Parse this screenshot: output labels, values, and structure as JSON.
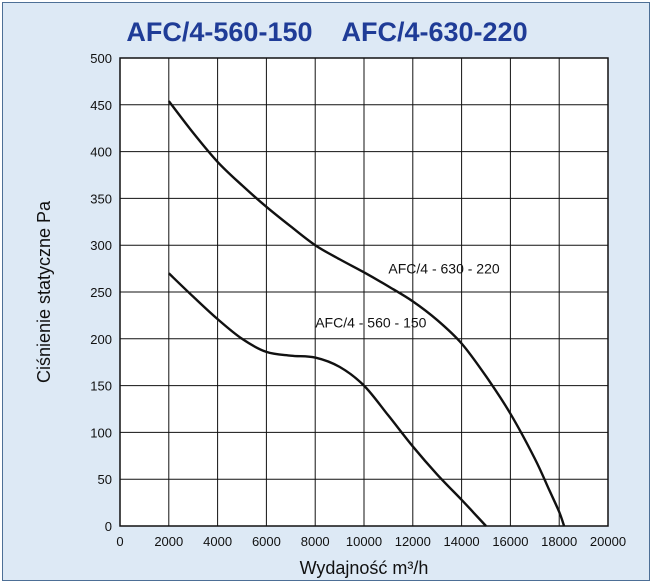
{
  "chart_data": {
    "type": "line",
    "title": "AFC/4-560-150    AFC/4-630-220",
    "xlabel": "Wydajność m³/h",
    "ylabel": "Ciśnienie statyczne Pa",
    "xlim": [
      0,
      20000
    ],
    "ylim": [
      0,
      500
    ],
    "x_ticks": [
      0,
      2000,
      4000,
      6000,
      8000,
      10000,
      12000,
      14000,
      16000,
      18000,
      20000
    ],
    "y_ticks": [
      0,
      50,
      100,
      150,
      200,
      250,
      300,
      350,
      400,
      450,
      500
    ],
    "grid": true,
    "series": [
      {
        "name": "AFC/4 - 630 - 220",
        "points": [
          [
            2000,
            454
          ],
          [
            3000,
            420
          ],
          [
            4000,
            389
          ],
          [
            5000,
            364
          ],
          [
            6000,
            341
          ],
          [
            7000,
            320
          ],
          [
            8000,
            300
          ],
          [
            9000,
            285
          ],
          [
            10000,
            271
          ],
          [
            11000,
            256
          ],
          [
            12000,
            240
          ],
          [
            13000,
            220
          ],
          [
            14000,
            195
          ],
          [
            15000,
            160
          ],
          [
            16000,
            120
          ],
          [
            17000,
            72
          ],
          [
            17600,
            38
          ],
          [
            18000,
            15
          ],
          [
            18200,
            0
          ]
        ]
      },
      {
        "name": "AFC/4 - 560 - 150",
        "points": [
          [
            2000,
            270
          ],
          [
            3000,
            245
          ],
          [
            4000,
            221
          ],
          [
            5000,
            200
          ],
          [
            6000,
            186
          ],
          [
            7000,
            182
          ],
          [
            8000,
            180
          ],
          [
            9000,
            170
          ],
          [
            10000,
            150
          ],
          [
            11000,
            118
          ],
          [
            12000,
            85
          ],
          [
            13000,
            55
          ],
          [
            14000,
            28
          ],
          [
            14500,
            14
          ],
          [
            15000,
            0
          ]
        ]
      }
    ],
    "annotations": [
      {
        "text": "AFC/4 - 630 - 220",
        "x": 11000,
        "y": 270
      },
      {
        "text": "AFC/4 - 560 - 150",
        "x": 8000,
        "y": 212
      }
    ]
  }
}
